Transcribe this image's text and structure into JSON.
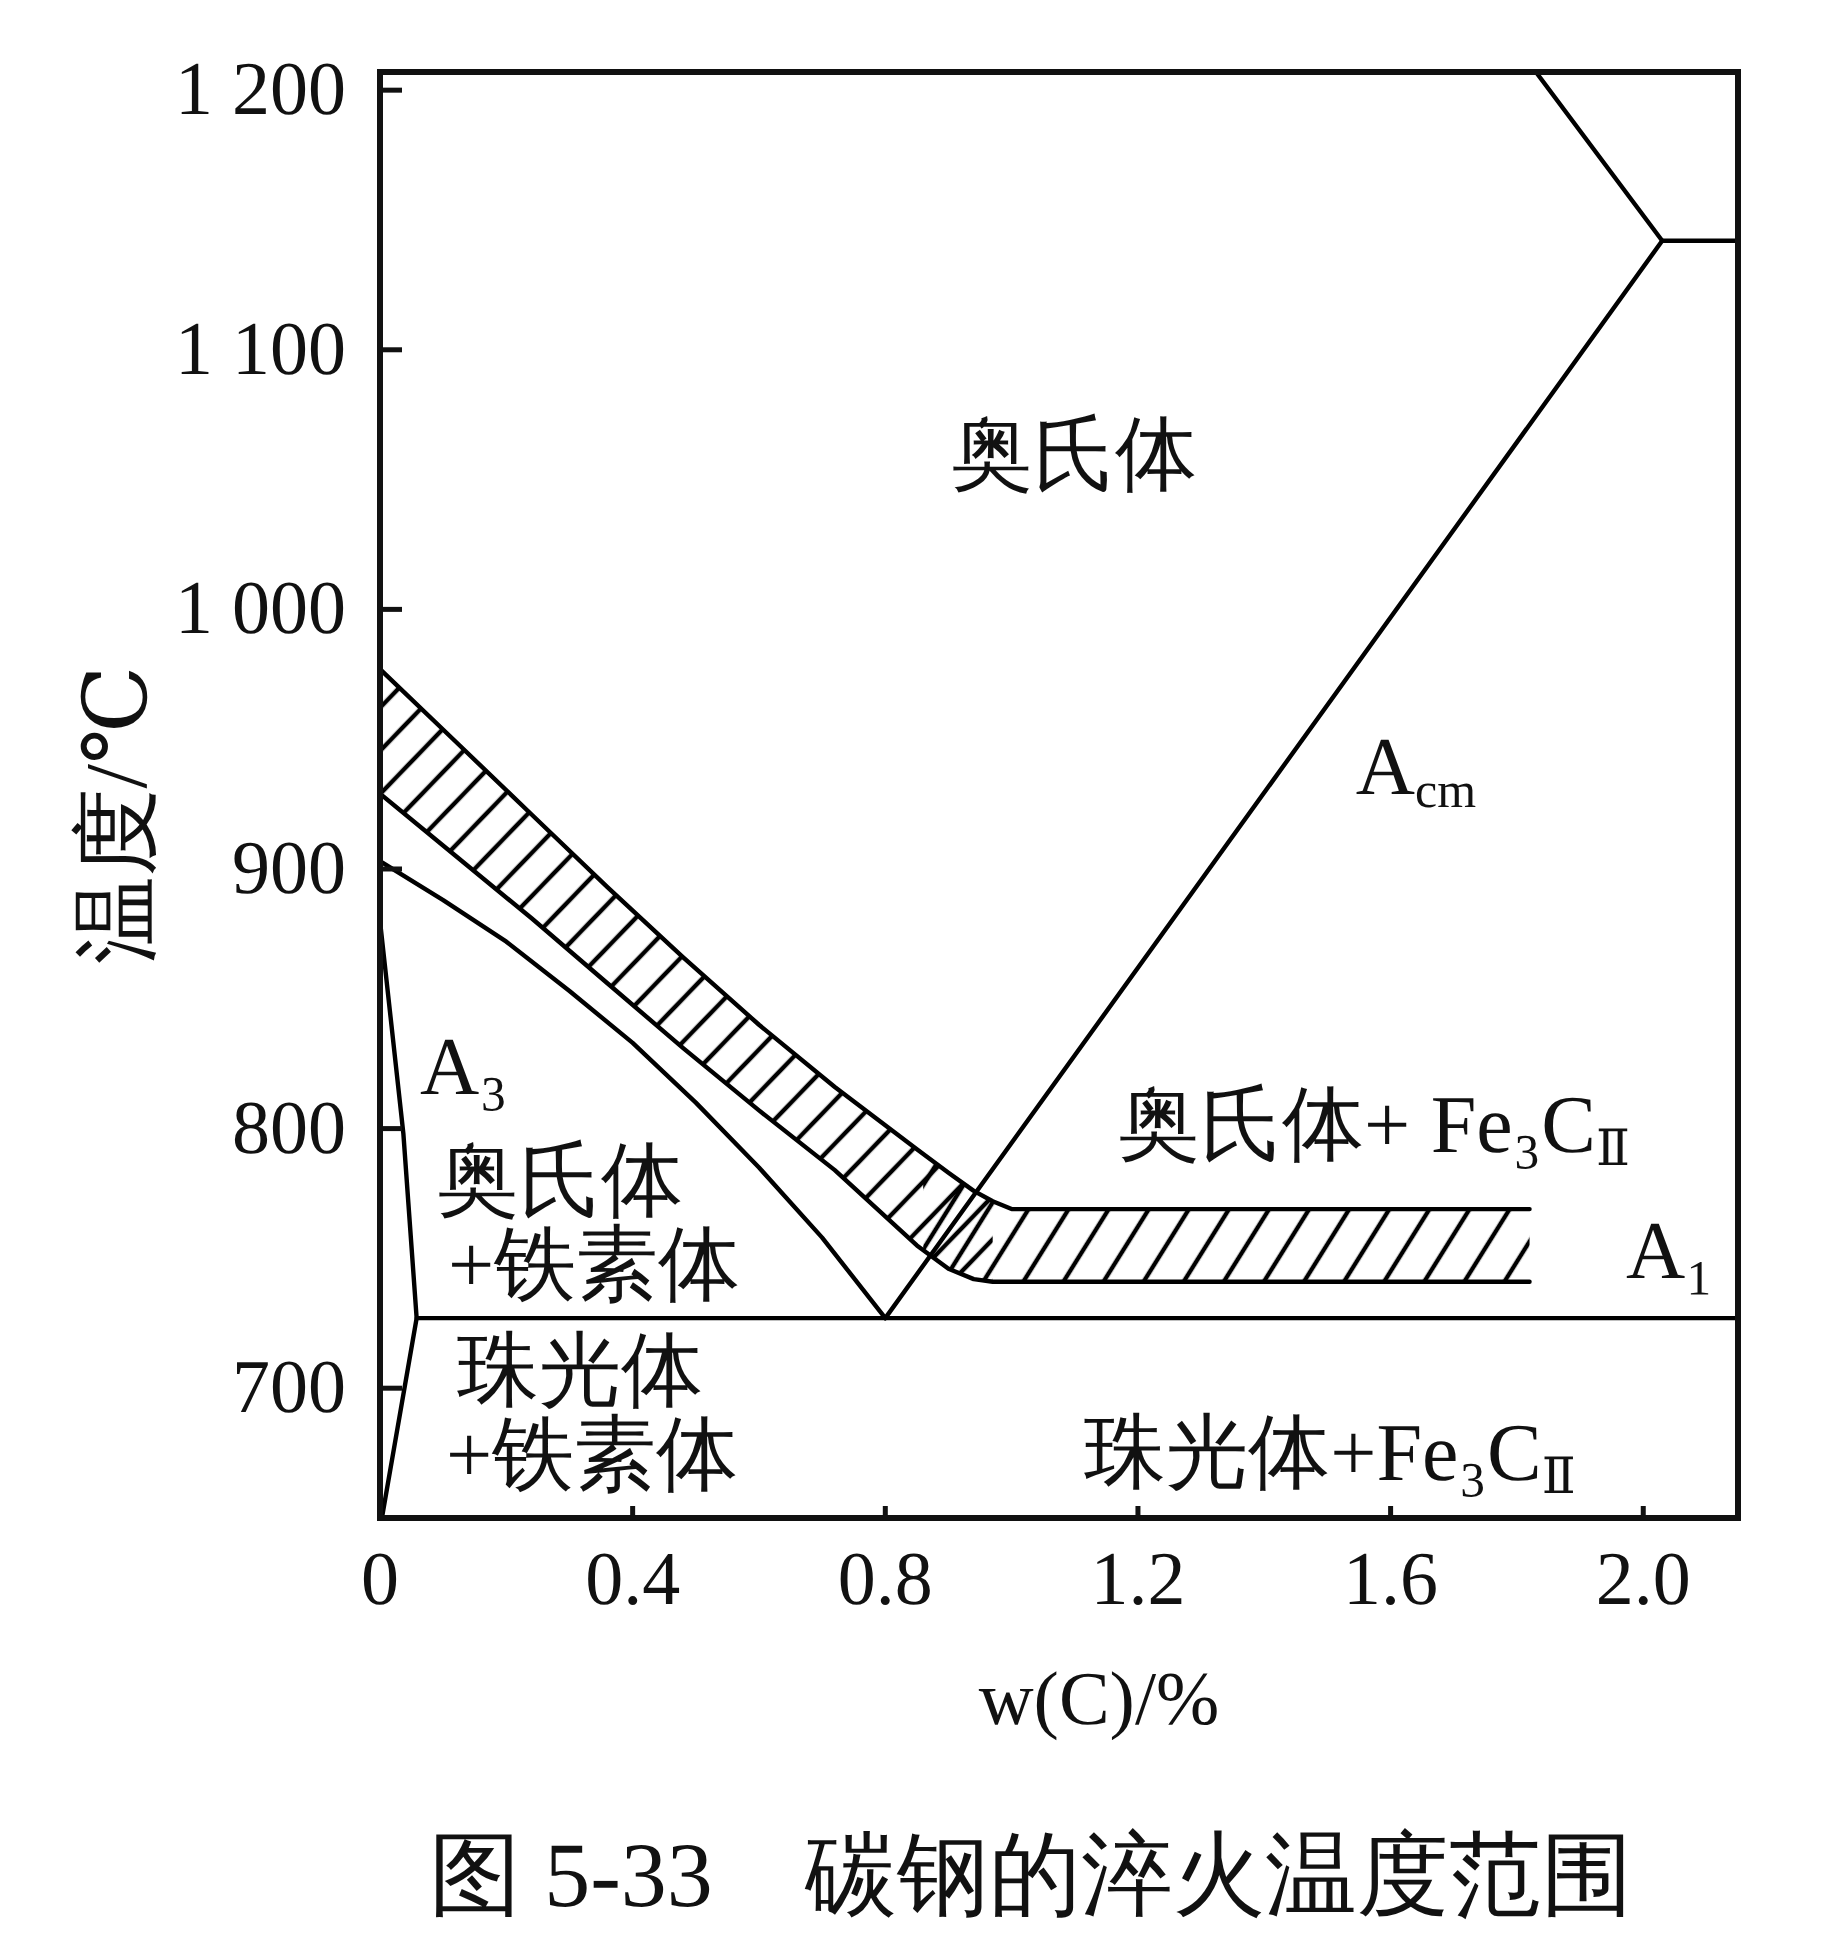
{
  "chart_data": {
    "type": "line",
    "xlabel": "w(C)/%",
    "ylabel": "温度/℃",
    "xlim": [
      0,
      2.15
    ],
    "ylim": [
      650,
      1207
    ],
    "xticks": [
      0,
      0.4,
      0.8,
      1.2,
      1.6,
      {
        "value": 2,
        "label": "2.0"
      }
    ],
    "yticks": [
      700,
      800,
      900,
      {
        "value": 1000,
        "label": "1 000"
      },
      {
        "value": 1100,
        "label": "1 100"
      },
      {
        "value": 1200,
        "label": "1 200"
      }
    ],
    "series": [
      {
        "color": "#000000",
        "x": [
          0,
          0.1,
          0.2,
          0.3,
          0.4,
          0.5,
          0.6,
          0.7,
          0.8
        ],
        "values": [
          903,
          888,
          872,
          853,
          833,
          810,
          785,
          758,
          727
        ]
      },
      {
        "color": "#000000",
        "x": [
          0,
          0.037,
          0.058,
          0.003
        ],
        "values": [
          880,
          798,
          727,
          650
        ]
      },
      {
        "color": "#000000",
        "x": [
          0.058,
          2.15
        ],
        "values": [
          727,
          727
        ]
      },
      {
        "color": "#000000",
        "x": [
          0.8,
          2.03
        ],
        "values": [
          727,
          1142
        ]
      },
      {
        "color": "#000000",
        "x": [
          2.03,
          2.15
        ],
        "values": [
          1142,
          1142
        ]
      },
      {
        "color": "#000000",
        "x": [
          2.03,
          1.83
        ],
        "values": [
          1142,
          1207
        ]
      },
      {
        "color": "#000000",
        "x": [
          0,
          0.12,
          0.24,
          0.36,
          0.48,
          0.6,
          0.72,
          0.85,
          0.9,
          0.94,
          0.97,
          1.0,
          1.82
        ],
        "values": [
          977,
          949,
          921,
          893,
          866,
          840,
          816,
          792,
          783,
          776,
          772,
          769,
          769
        ]
      },
      {
        "color": "#000000",
        "x": [
          0,
          0.12,
          0.24,
          0.36,
          0.48,
          0.6,
          0.72,
          0.85,
          0.9,
          0.94,
          0.97,
          1.82
        ],
        "values": [
          929,
          905,
          881,
          856,
          831,
          807,
          784,
          755,
          746,
          742,
          741,
          741
        ]
      },
      {
        "color": "#000000",
        "x": [
          0,
          0.12,
          0.24,
          0.36,
          0.48,
          0.6,
          0.72,
          0.85,
          0.9,
          0.94,
          0.97
        ],
        "values": [
          null,
          null,
          null,
          null,
          null,
          null,
          null,
          null,
          null,
          null,
          null
        ],
        "upper": [
          977,
          949,
          921,
          893,
          866,
          840,
          816,
          792,
          783,
          776,
          772
        ],
        "lower": [
          929,
          905,
          881,
          856,
          831,
          807,
          784,
          755,
          746,
          742,
          741
        ]
      },
      {
        "color": "#000000",
        "x": [
          0.86,
          0.9,
          0.94,
          0.97,
          1.0,
          1.82
        ],
        "values": [
          null,
          null,
          null,
          null,
          null,
          null
        ],
        "upper": [
          790,
          783,
          776,
          772,
          769,
          769
        ],
        "lower": [
          753,
          746,
          742,
          741,
          741,
          741
        ]
      }
    ],
    "annotations": [
      "奥氏体",
      "A$_{cm}$",
      "A₃",
      "奥氏体",
      "+铁素体",
      "奥氏体+ Fe₃C$_{Ⅱ}$",
      "A₁",
      "珠光体",
      "+铁素体",
      "珠光体+Fe₃C$_{Ⅱ}$",
      "图 5-33　碳钢的淬火温度范围"
    ]
  }
}
